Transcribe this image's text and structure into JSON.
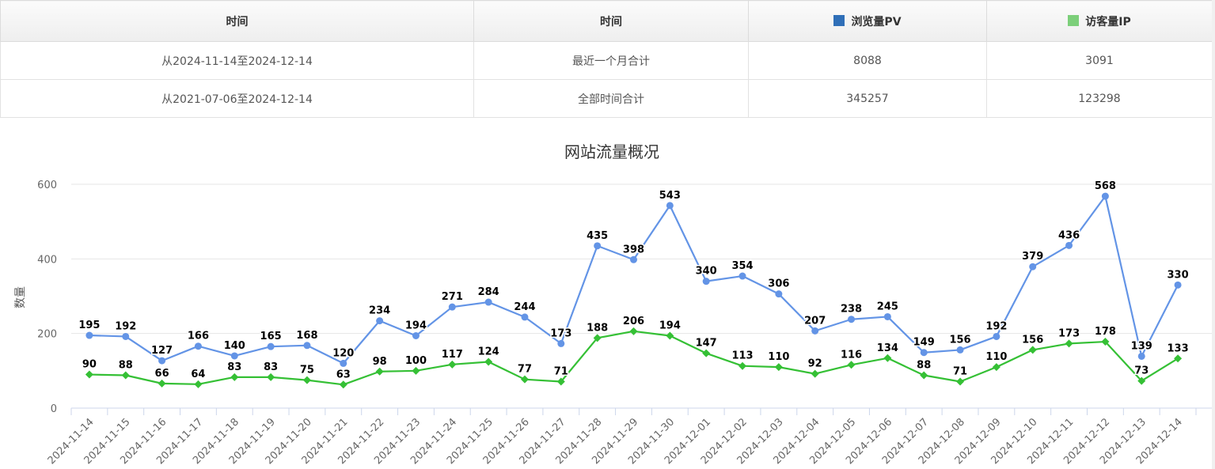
{
  "table": {
    "headers": [
      {
        "label": "时间"
      },
      {
        "label": "时间"
      },
      {
        "label": "浏览量PV",
        "swatch": "#2f6fb8"
      },
      {
        "label": "访客量IP",
        "swatch": "#7ccf7a"
      }
    ],
    "rows": [
      [
        "从2024-11-14至2024-12-14",
        "最近一个月合计",
        "8088",
        "3091"
      ],
      [
        "从2021-07-06至2024-12-14",
        "全部时间合计",
        "345257",
        "123298"
      ]
    ]
  },
  "chart_data": {
    "type": "line",
    "title": "网站流量概况",
    "ylabel": "数量",
    "xlabel": "",
    "ylim": [
      0,
      600
    ],
    "yticks": [
      0,
      200,
      400,
      600
    ],
    "grid": true,
    "categories": [
      "2024-11-14",
      "2024-11-15",
      "2024-11-16",
      "2024-11-17",
      "2024-11-18",
      "2024-11-19",
      "2024-11-20",
      "2024-11-21",
      "2024-11-22",
      "2024-11-23",
      "2024-11-24",
      "2024-11-25",
      "2024-11-26",
      "2024-11-27",
      "2024-11-28",
      "2024-11-29",
      "2024-11-30",
      "2024-12-01",
      "2024-12-02",
      "2024-12-03",
      "2024-12-04",
      "2024-12-05",
      "2024-12-06",
      "2024-12-07",
      "2024-12-08",
      "2024-12-09",
      "2024-12-10",
      "2024-12-11",
      "2024-12-12",
      "2024-12-13",
      "2024-12-14"
    ],
    "series": [
      {
        "name": "浏览量PV",
        "color": "#6394e6",
        "marker": "circle",
        "values": [
          195,
          192,
          127,
          166,
          140,
          165,
          168,
          120,
          234,
          194,
          271,
          284,
          244,
          173,
          435,
          398,
          543,
          340,
          354,
          306,
          207,
          238,
          245,
          149,
          156,
          192,
          379,
          436,
          568,
          139,
          330
        ]
      },
      {
        "name": "访客量IP",
        "color": "#35c035",
        "marker": "diamond",
        "values": [
          90,
          88,
          66,
          64,
          83,
          83,
          75,
          63,
          98,
          100,
          117,
          124,
          77,
          71,
          188,
          206,
          194,
          147,
          113,
          110,
          92,
          116,
          134,
          88,
          71,
          110,
          156,
          173,
          178,
          73,
          133
        ]
      }
    ]
  }
}
